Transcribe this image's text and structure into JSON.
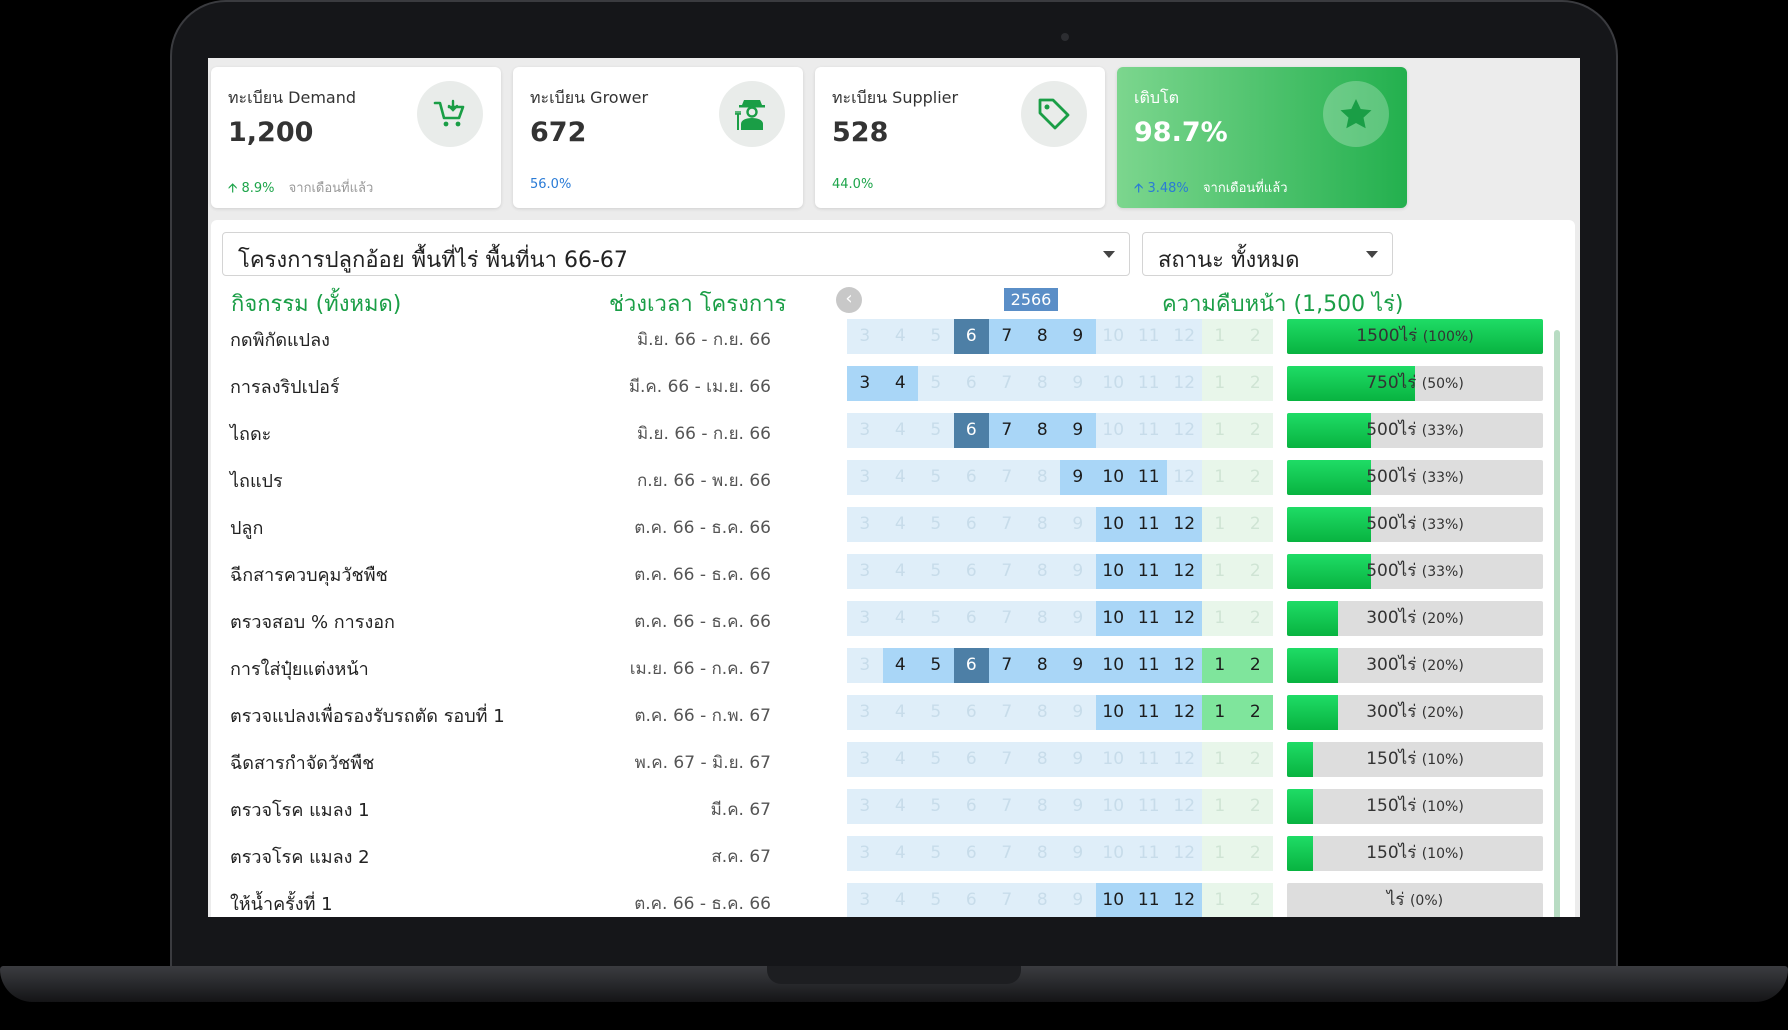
{
  "cards": [
    {
      "label": "ทะเบียน Demand",
      "value": "1,200",
      "change": "8.9%",
      "note": "จากเดือนที่แล้ว",
      "icon": "cart-icon"
    },
    {
      "label": "ทะเบียน Grower",
      "value": "672",
      "change": "56.0%",
      "note": "",
      "icon": "farmer-icon"
    },
    {
      "label": "ทะเบียน Supplier",
      "value": "528",
      "change": "44.0%",
      "note": "",
      "icon": "tag-icon"
    },
    {
      "label": "เติบโต",
      "value": "98.7%",
      "change": "3.48%",
      "note": "จากเดือนที่แล้ว",
      "icon": "star-icon"
    }
  ],
  "filters": {
    "project": "โครงการปลูกอ้อย พื้นที่ไร่ พื้นที่นา 66-67",
    "status": "สถานะ ทั้งหมด"
  },
  "headers": {
    "activity": "กิจกรรม (ทั้งหมด)",
    "period": "ช่วงเวลา โครงการ",
    "year": "2566",
    "progress": "ความคืบหน้า (1,500 ไร่)"
  },
  "month_labels": [
    "3",
    "4",
    "5",
    "6",
    "7",
    "8",
    "9",
    "10",
    "11",
    "12",
    "1",
    "2"
  ],
  "current_month": "6",
  "activities": [
    {
      "name": "กดพิกัดแปลง",
      "period": "มิ.ย. 66 - ก.ย. 66",
      "active": [
        "6",
        "7",
        "8",
        "9"
      ],
      "area": "1500ไร่",
      "pct": "(100%)",
      "frac": 1.0
    },
    {
      "name": "การลงริปเปอร์",
      "period": "มี.ค. 66 - เม.ย. 66",
      "active": [
        "3",
        "4"
      ],
      "area": "750ไร่",
      "pct": "(50%)",
      "frac": 0.5
    },
    {
      "name": "ไถดะ",
      "period": "มิ.ย. 66 - ก.ย. 66",
      "active": [
        "6",
        "7",
        "8",
        "9"
      ],
      "area": "500ไร่",
      "pct": "(33%)",
      "frac": 0.33
    },
    {
      "name": "ไถแปร",
      "period": "ก.ย. 66 - พ.ย. 66",
      "active": [
        "9",
        "10",
        "11"
      ],
      "area": "500ไร่",
      "pct": "(33%)",
      "frac": 0.33
    },
    {
      "name": "ปลูก",
      "period": "ต.ค. 66 - ธ.ค. 66",
      "active": [
        "10",
        "11",
        "12"
      ],
      "area": "500ไร่",
      "pct": "(33%)",
      "frac": 0.33
    },
    {
      "name": "ฉีกสารควบคุมวัชพืช",
      "period": "ต.ค. 66 - ธ.ค. 66",
      "active": [
        "10",
        "11",
        "12"
      ],
      "area": "500ไร่",
      "pct": "(33%)",
      "frac": 0.33
    },
    {
      "name": "ตรวจสอบ % การงอก",
      "period": "ต.ค. 66 - ธ.ค. 66",
      "active": [
        "10",
        "11",
        "12"
      ],
      "area": "300ไร่",
      "pct": "(20%)",
      "frac": 0.2
    },
    {
      "name": "การใส่ปุ๋ยแต่งหน้า",
      "period": "เม.ย. 66 - ก.ค. 67",
      "active": [
        "4",
        "5",
        "6",
        "7",
        "8",
        "9",
        "10",
        "11",
        "12",
        "1",
        "2"
      ],
      "area": "300ไร่",
      "pct": "(20%)",
      "frac": 0.2
    },
    {
      "name": "ตรวจแปลงเพื่อรองรับรถตัด รอบที่ 1",
      "period": "ต.ค. 66 - ก.พ. 67",
      "active": [
        "10",
        "11",
        "12",
        "1",
        "2"
      ],
      "area": "300ไร่",
      "pct": "(20%)",
      "frac": 0.2
    },
    {
      "name": "ฉีดสารกำจัดวัชพืช",
      "period": "พ.ค. 67 - มิ.ย. 67",
      "active": [],
      "area": "150ไร่",
      "pct": "(10%)",
      "frac": 0.1
    },
    {
      "name": "ตรวจโรค แมลง 1",
      "period": "มี.ค. 67",
      "active": [],
      "area": "150ไร่",
      "pct": "(10%)",
      "frac": 0.1
    },
    {
      "name": "ตรวจโรค แมลง 2",
      "period": "ส.ค. 67",
      "active": [],
      "area": "150ไร่",
      "pct": "(10%)",
      "frac": 0.1
    },
    {
      "name": "ให้น้ำครั้งที่ 1",
      "period": "ต.ค. 66 - ธ.ค. 66",
      "active": [
        "10",
        "11",
        "12"
      ],
      "area": "ไร่",
      "pct": "(0%)",
      "frac": 0.0
    }
  ]
}
